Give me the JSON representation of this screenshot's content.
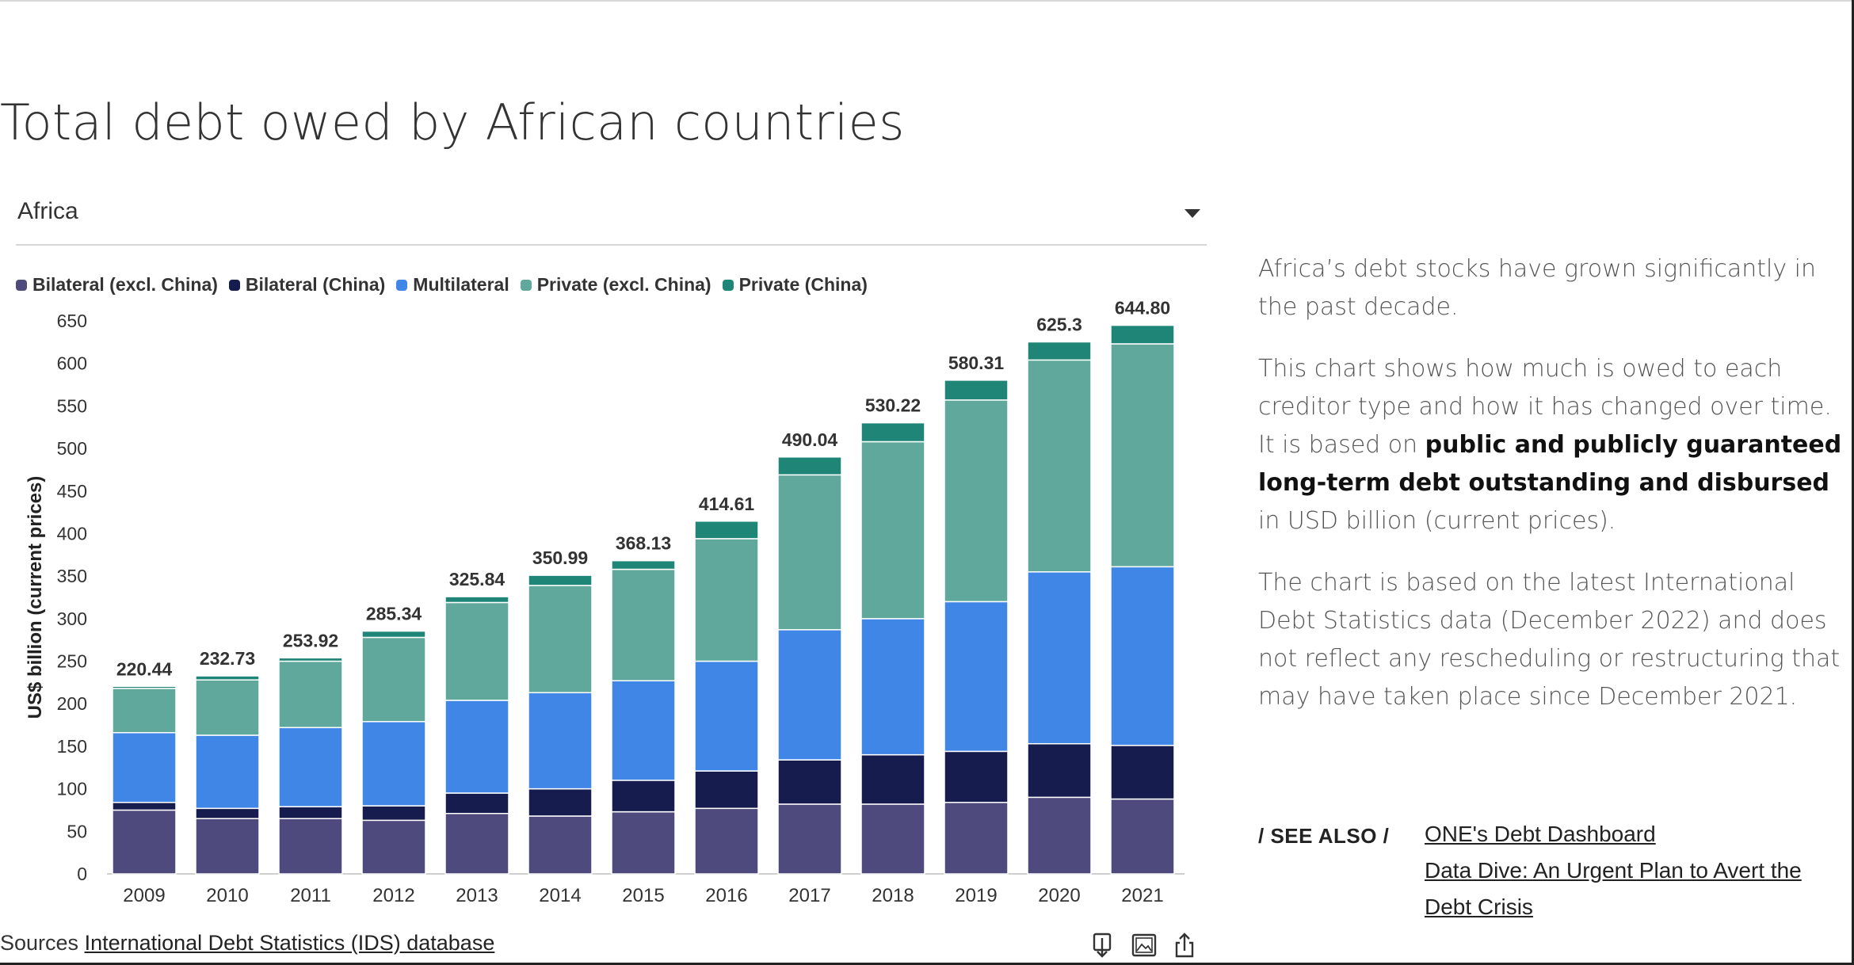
{
  "page": {
    "title": "Total debt owed by African countries"
  },
  "filter": {
    "selected": "Africa"
  },
  "legend": [
    {
      "label": "Bilateral (excl. China)",
      "color": "#4e4a7d"
    },
    {
      "label": "Bilateral (China)",
      "color": "#161c4d"
    },
    {
      "label": "Multilateral",
      "color": "#3f86e6"
    },
    {
      "label": "Private (excl. China)",
      "color": "#5fa89b"
    },
    {
      "label": "Private (China)",
      "color": "#1e8577"
    }
  ],
  "chart_data": {
    "type": "bar",
    "stacked": true,
    "categories": [
      "2009",
      "2010",
      "2011",
      "2012",
      "2013",
      "2014",
      "2015",
      "2016",
      "2017",
      "2018",
      "2019",
      "2020",
      "2021"
    ],
    "series": [
      {
        "name": "Bilateral (excl. China)",
        "color": "#4e4a7d",
        "values": [
          75,
          65,
          65,
          63,
          71,
          68,
          73,
          77,
          82,
          82,
          84,
          90,
          88
        ]
      },
      {
        "name": "Bilateral (China)",
        "color": "#161c4d",
        "values": [
          9,
          12,
          14,
          17,
          24,
          32,
          37,
          44,
          52,
          58,
          60,
          63,
          63
        ]
      },
      {
        "name": "Multilateral",
        "color": "#3f86e6",
        "values": [
          82,
          86,
          93,
          99,
          109,
          113,
          117,
          129,
          153,
          160,
          176,
          202,
          210
        ]
      },
      {
        "name": "Private (excl. China)",
        "color": "#5fa89b",
        "values": [
          52,
          65,
          78,
          99,
          115,
          126,
          131,
          144,
          182,
          208,
          237,
          249,
          262
        ]
      },
      {
        "name": "Private (China)",
        "color": "#1e8577",
        "values": [
          2.44,
          4.73,
          3.92,
          7.34,
          6.84,
          11.99,
          10.13,
          20.61,
          21.04,
          22.22,
          23.31,
          21.3,
          21.8
        ]
      }
    ],
    "totals": [
      220.44,
      232.73,
      253.92,
      285.34,
      325.84,
      350.99,
      368.13,
      414.61,
      490.04,
      530.22,
      580.31,
      625.3,
      644.8
    ],
    "total_labels": [
      "220.44",
      "232.73",
      "253.92",
      "285.34",
      "325.84",
      "350.99",
      "368.13",
      "414.61",
      "490.04",
      "530.22",
      "580.31",
      "625.3",
      "644.80"
    ],
    "y_ticks": [
      0,
      50,
      100,
      150,
      200,
      250,
      300,
      350,
      400,
      450,
      500,
      550,
      600,
      650
    ],
    "ylim": [
      0,
      650
    ],
    "ylabel": "US$ billion (current prices)",
    "xlabel": "",
    "grid": false
  },
  "sources": {
    "prefix": "Sources",
    "link_text": "International Debt Statistics (IDS) database"
  },
  "toolbar": {
    "icons": [
      "download-icon",
      "image-icon",
      "share-icon"
    ]
  },
  "sidebar": {
    "intro": "Africa’s debt stocks have grown significantly in the past decade.",
    "p2_start": "This chart shows how much is owed to each creditor type and how it has changed over time. It is based on ",
    "p2_bold": "public and publicly guaranteed long-term debt outstanding and disbursed",
    "p2_end": " in USD billion (current prices).",
    "p3": "The chart is based on the latest International Debt Statistics data (December 2022) and does not reflect any rescheduling or restructuring that may have taken place since December 2021."
  },
  "see_also": {
    "label": "/ SEE ALSO /",
    "links": [
      "ONE's Debt Dashboard",
      "Data Dive: An Urgent Plan to Avert the Debt Crisis"
    ]
  }
}
